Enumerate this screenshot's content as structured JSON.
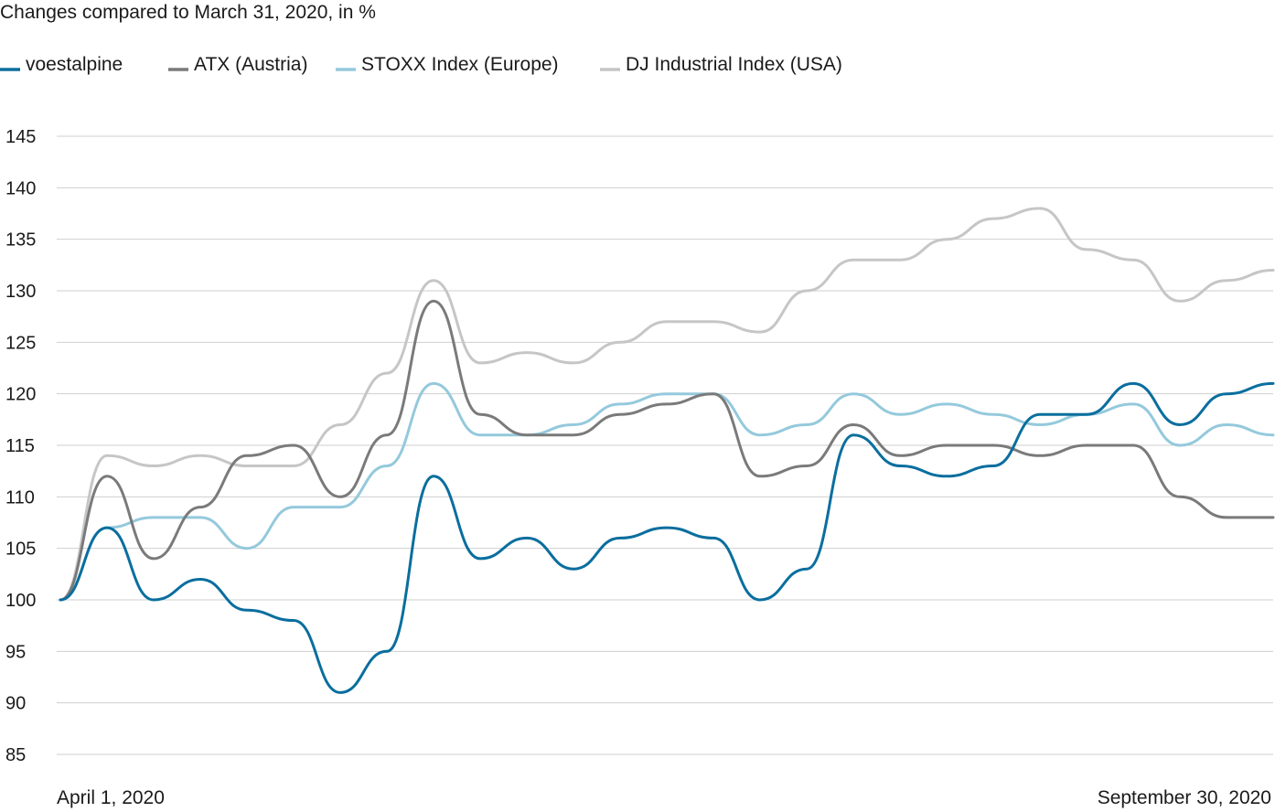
{
  "chart_data": {
    "type": "line",
    "subtitle": "Changes compared to March 31, 2020, in %",
    "x_start_label": "April 1, 2020",
    "x_end_label": "September 30, 2020",
    "ylim": [
      85,
      145
    ],
    "yticks": [
      145,
      140,
      135,
      130,
      125,
      120,
      115,
      110,
      105,
      100,
      95,
      90,
      85
    ],
    "grid": true,
    "legend_position": "top-left",
    "x": [
      "Apr 1",
      "Apr 8",
      "Apr 15",
      "Apr 22",
      "Apr 29",
      "May 6",
      "May 13",
      "May 20",
      "May 27",
      "Jun 3",
      "Jun 10",
      "Jun 17",
      "Jun 24",
      "Jul 1",
      "Jul 8",
      "Jul 15",
      "Jul 22",
      "Jul 29",
      "Aug 5",
      "Aug 12",
      "Aug 19",
      "Aug 26",
      "Sep 2",
      "Sep 9",
      "Sep 16",
      "Sep 23",
      "Sep 30"
    ],
    "series": [
      {
        "name": "voestalpine",
        "color": "#0a6e9e",
        "values": [
          100,
          107,
          100,
          102,
          99,
          98,
          91,
          95,
          112,
          104,
          106,
          103,
          106,
          107,
          106,
          100,
          103,
          116,
          113,
          112,
          113,
          118,
          118,
          121,
          117,
          120,
          121
        ]
      },
      {
        "name": "ATX (Austria)",
        "color": "#7a7a7a",
        "values": [
          100,
          112,
          104,
          109,
          114,
          115,
          110,
          116,
          129,
          118,
          116,
          116,
          118,
          119,
          120,
          112,
          113,
          117,
          114,
          115,
          115,
          114,
          115,
          115,
          110,
          108,
          108
        ]
      },
      {
        "name": "STOXX Index (Europe)",
        "color": "#94c9dc",
        "values": [
          100,
          107,
          108,
          108,
          105,
          109,
          109,
          113,
          121,
          116,
          116,
          117,
          119,
          120,
          120,
          116,
          117,
          120,
          118,
          119,
          118,
          117,
          118,
          119,
          115,
          117,
          116
        ]
      },
      {
        "name": "DJ Industrial Index (USA)",
        "color": "#c6c6c6",
        "values": [
          100,
          114,
          113,
          114,
          113,
          113,
          117,
          122,
          131,
          123,
          124,
          123,
          125,
          127,
          127,
          126,
          130,
          133,
          133,
          135,
          137,
          138,
          134,
          133,
          129,
          131,
          132
        ]
      }
    ]
  }
}
